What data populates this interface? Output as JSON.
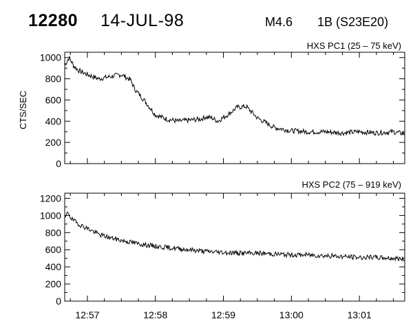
{
  "header": {
    "event_id": "12280",
    "date": "14-JUL-98",
    "flare_class": "M4.6",
    "location": "1B (S23E20)"
  },
  "chart_data": [
    {
      "type": "line",
      "title": "HXS PC1 (25 – 75 keV)",
      "ylabel": "CTS/SEC",
      "xlabel": "",
      "xlim": [
        "12:56:40",
        "13:01:40"
      ],
      "ylim": [
        0,
        1050
      ],
      "yticks": [
        0,
        200,
        400,
        600,
        800,
        1000
      ],
      "yticklabels": [
        "0",
        "200",
        "400",
        "600",
        "800",
        "1000"
      ],
      "xticks": [
        "12:57",
        "12:58",
        "12:59",
        "13:00",
        "13:01"
      ],
      "show_xticklabels": false,
      "grid": false,
      "series": [
        {
          "x": [
            "12:56:40",
            "12:56:44",
            "12:56:48",
            "12:56:52",
            "12:57:00",
            "12:57:10",
            "12:57:20",
            "12:57:30",
            "12:57:38",
            "12:57:42",
            "12:57:50",
            "12:57:55",
            "12:58:00",
            "12:58:10",
            "12:58:20",
            "12:58:30",
            "12:58:40",
            "12:58:44",
            "12:58:50",
            "12:58:55",
            "12:59:05",
            "12:59:12",
            "12:59:20",
            "12:59:30",
            "12:59:45",
            "13:00:00",
            "13:00:15",
            "13:00:30",
            "13:00:45",
            "13:01:00",
            "13:01:15",
            "13:01:30",
            "13:01:40"
          ],
          "values": [
            930,
            1000,
            920,
            880,
            840,
            800,
            820,
            840,
            790,
            700,
            600,
            530,
            460,
            420,
            400,
            410,
            420,
            440,
            430,
            400,
            470,
            530,
            540,
            430,
            340,
            310,
            300,
            300,
            290,
            300,
            290,
            300,
            280
          ]
        }
      ]
    },
    {
      "type": "line",
      "title": "HXS PC2 (75 – 919 keV)",
      "ylabel": "",
      "xlabel": "",
      "xlim": [
        "12:56:40",
        "13:01:40"
      ],
      "ylim": [
        0,
        1260
      ],
      "yticks": [
        0,
        200,
        400,
        600,
        800,
        1000,
        1200
      ],
      "yticklabels": [
        "0",
        "200",
        "400",
        "600",
        "800",
        "1000",
        "1200"
      ],
      "xticks": [
        "12:57",
        "12:58",
        "12:59",
        "13:00",
        "13:01"
      ],
      "xticklabels": [
        "12:57",
        "12:58",
        "12:59",
        "13:00",
        "13:01"
      ],
      "grid": false,
      "series": [
        {
          "x": [
            "12:56:40",
            "12:56:43",
            "12:56:46",
            "12:56:50",
            "12:56:55",
            "12:57:00",
            "12:57:10",
            "12:57:20",
            "12:57:30",
            "12:57:45",
            "12:58:00",
            "12:58:15",
            "12:58:30",
            "12:58:45",
            "12:59:00",
            "12:59:15",
            "12:59:30",
            "12:59:45",
            "13:00:00",
            "13:00:15",
            "13:00:30",
            "13:00:45",
            "13:01:00",
            "13:01:15",
            "13:01:30",
            "13:01:40"
          ],
          "values": [
            960,
            1040,
            960,
            920,
            880,
            850,
            780,
            740,
            710,
            670,
            640,
            620,
            600,
            580,
            570,
            560,
            560,
            550,
            540,
            540,
            530,
            520,
            510,
            510,
            500,
            490
          ]
        }
      ]
    }
  ]
}
